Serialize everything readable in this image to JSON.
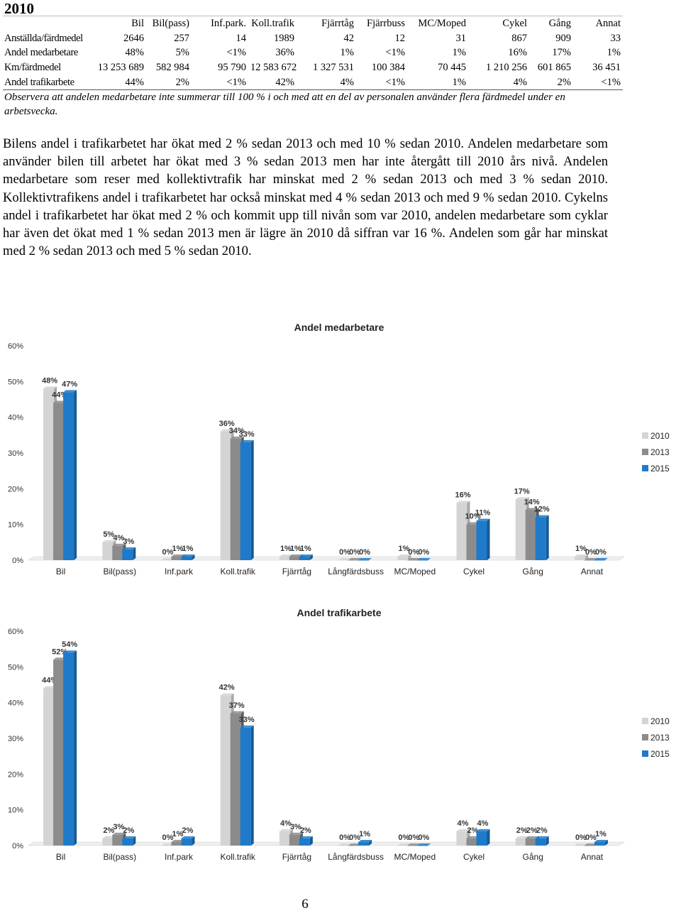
{
  "heading": "2010",
  "table": {
    "headers": [
      "",
      "Bil",
      "Bil(pass)",
      "Inf.park.",
      "Koll.trafik",
      "Fjärrtåg",
      "Fjärrbuss",
      "MC/Moped",
      "Cykel",
      "Gång",
      "Annat"
    ],
    "rows": [
      [
        "Anställda/färdmedel",
        "2646",
        "257",
        "14",
        "1989",
        "42",
        "12",
        "31",
        "867",
        "909",
        "33"
      ],
      [
        "Andel medarbetare",
        "48%",
        "5%",
        "<1%",
        "36%",
        "1%",
        "<1%",
        "1%",
        "16%",
        "17%",
        "1%"
      ],
      [
        "Km/färdmedel",
        "13 253 689",
        "582 984",
        "95 790",
        "12 583 672",
        "1 327 531",
        "100 384",
        "70 445",
        "1 210 256",
        "601 865",
        "36 451"
      ],
      [
        "Andel trafikarbete",
        "44%",
        "2%",
        "<1%",
        "42%",
        "4%",
        "<1%",
        "1%",
        "4%",
        "2%",
        "<1%"
      ]
    ]
  },
  "note": "Observera att andelen medarbetare inte summerar till 100 % i och med att en del av personalen använder flera färdmedel under en arbetsvecka.",
  "paragraph": "Bilens andel i trafikarbetet har ökat med 2 % sedan 2013 och med 10 % sedan 2010. Andelen medarbetare som använder bilen till arbetet har ökat med 3 % sedan 2013 men har inte återgått till 2010 års nivå. Andelen medarbetare som reser med kollektivtrafik har minskat med 2 % sedan 2013 och med 3 % sedan 2010. Kollektivtrafikens andel i trafikarbetet har också minskat med 4 % sedan 2013 och med 9 % sedan 2010. Cykelns andel i trafikarbetet har ökat med 2 % och kommit upp till nivån som var 2010, andelen medarbetare som cyklar har även det ökat med 1 % sedan 2013 men är lägre än 2010 då siffran var 16 %. Andelen som går har minskat med 2 % sedan 2013 och med 5 % sedan 2010.",
  "colors": {
    "s2010": "#d4d4d4",
    "s2013": "#8c8c8c",
    "s2015": "#1f7ac9"
  },
  "chart_data": [
    {
      "type": "bar",
      "title": "Andel medarbetare",
      "categories": [
        "Bil",
        "Bil(pass)",
        "Inf.park",
        "Koll.trafik",
        "Fjärrtåg",
        "Långfärdsbuss",
        "MC/Moped",
        "Cykel",
        "Gång",
        "Annat"
      ],
      "series": [
        {
          "name": "2010",
          "values": [
            48,
            5,
            0,
            36,
            1,
            0,
            1,
            16,
            17,
            1
          ],
          "labels": [
            "48%",
            "5%",
            "0%",
            "36%",
            "1%",
            "0%",
            "1%",
            "16%",
            "17%",
            "1%"
          ]
        },
        {
          "name": "2013",
          "values": [
            44,
            4,
            1,
            34,
            1,
            0,
            0,
            10,
            14,
            0
          ],
          "labels": [
            "44%",
            "4%",
            "1%",
            "34%",
            "1%",
            "0%",
            "0%",
            "10%",
            "14%",
            "0%"
          ]
        },
        {
          "name": "2015",
          "values": [
            47,
            3,
            1,
            33,
            1,
            0,
            0,
            11,
            12,
            0
          ],
          "labels": [
            "47%",
            "3%",
            "1%",
            "33%",
            "1%",
            "0%",
            "0%",
            "11%",
            "12%",
            "0%"
          ]
        }
      ],
      "ylim": [
        0,
        60
      ],
      "yticks": [
        "0%",
        "10%",
        "20%",
        "30%",
        "40%",
        "50%",
        "60%"
      ],
      "legend": "right",
      "grid": false
    },
    {
      "type": "bar",
      "title": "Andel trafikarbete",
      "categories": [
        "Bil",
        "Bil(pass)",
        "Inf.park",
        "Koll.trafik",
        "Fjärrtåg",
        "Långfärdsbuss",
        "MC/Moped",
        "Cykel",
        "Gång",
        "Annat"
      ],
      "series": [
        {
          "name": "2010",
          "values": [
            44,
            2,
            0,
            42,
            4,
            0,
            0,
            4,
            2,
            0
          ],
          "labels": [
            "44%",
            "2%",
            "0%",
            "42%",
            "4%",
            "0%",
            "0%",
            "4%",
            "2%",
            "0%"
          ]
        },
        {
          "name": "2013",
          "values": [
            52,
            3,
            1,
            37,
            3,
            0,
            0,
            2,
            2,
            0
          ],
          "labels": [
            "52%",
            "3%",
            "1%",
            "37%",
            "3%",
            "0%",
            "0%",
            "2%",
            "2%",
            "0%"
          ]
        },
        {
          "name": "2015",
          "values": [
            54,
            2,
            2,
            33,
            2,
            1,
            0,
            4,
            2,
            1
          ],
          "labels": [
            "54%",
            "2%",
            "2%",
            "33%",
            "2%",
            "1%",
            "0%",
            "4%",
            "2%",
            "1%"
          ]
        }
      ],
      "ylim": [
        0,
        60
      ],
      "yticks": [
        "0%",
        "10%",
        "20%",
        "30%",
        "40%",
        "50%",
        "60%"
      ],
      "legend": "right",
      "grid": false
    }
  ],
  "page_number": "6"
}
